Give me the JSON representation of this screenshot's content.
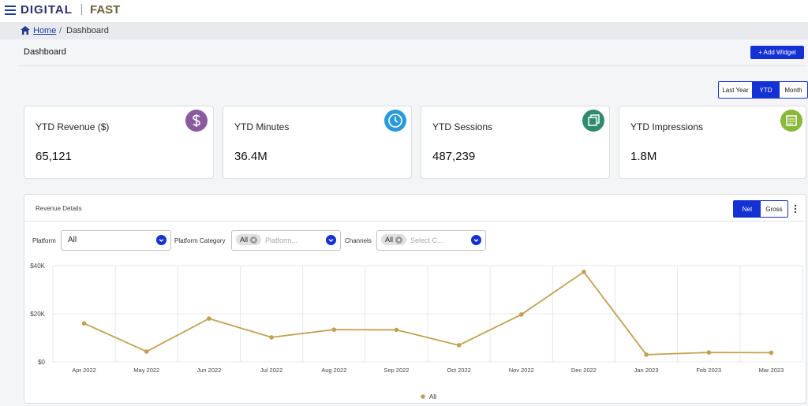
{
  "header": {
    "brand": "DIGITAL",
    "brand_suffix": "FAST"
  },
  "breadcrumb": {
    "home": "Home",
    "current": "Dashboard"
  },
  "page": {
    "title": "Dashboard",
    "add_widget": "+ Add Widget",
    "periods": [
      "Last Year",
      "YTD",
      "Month"
    ]
  },
  "cards": [
    {
      "title": "YTD Revenue ($)",
      "value": "65,121"
    },
    {
      "title": "YTD Minutes",
      "value": "36.4M"
    },
    {
      "title": "YTD Sessions",
      "value": "487,239"
    },
    {
      "title": "YTD Impressions",
      "value": "1.8M"
    }
  ],
  "panel": {
    "title": "Revenue Details",
    "modes": [
      "Net",
      "Gross"
    ],
    "filters": {
      "platform_label": "Platform",
      "platform_value": "All",
      "category_label": "Platform Category",
      "category_chip": "All",
      "category_placeholder": "Platform...",
      "channels_label": "Channels",
      "channels_chip": "All",
      "channels_placeholder": "Select C..."
    }
  },
  "chart_data": {
    "type": "line",
    "categories": [
      "Apr 2022",
      "May 2022",
      "Jun 2022",
      "Jul 2022",
      "Aug 2022",
      "Sep 2022",
      "Oct 2022",
      "Nov 2022",
      "Dec 2022",
      "Jan 2023",
      "Feb 2023",
      "Mar 2023"
    ],
    "series": [
      {
        "name": "All",
        "color": "#c2a050",
        "values": [
          16000,
          4300,
          18000,
          10200,
          13400,
          13300,
          6900,
          19700,
          37400,
          3000,
          3900,
          3800
        ]
      }
    ],
    "ylim": [
      0,
      40000
    ],
    "yticks": [
      {
        "value": 0,
        "label": "$0"
      },
      {
        "value": 20000,
        "label": "$20K"
      },
      {
        "value": 40000,
        "label": "$40K"
      }
    ],
    "grid": true
  }
}
